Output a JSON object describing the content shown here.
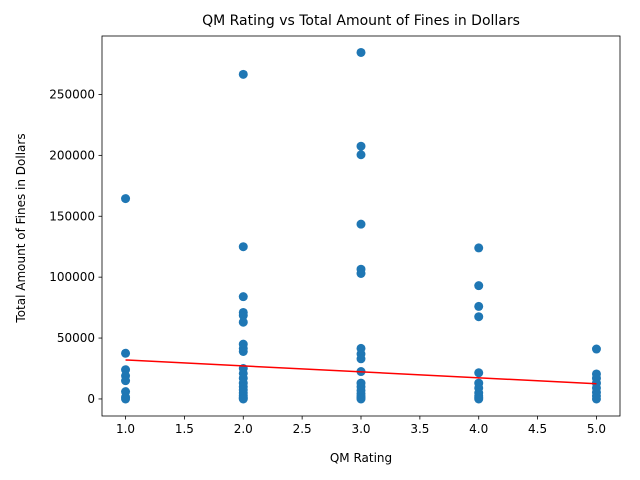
{
  "chart_data": {
    "type": "scatter",
    "title": "QM Rating vs Total Amount of Fines in Dollars",
    "xlabel": "QM Rating",
    "ylabel": "Total Amount of Fines in Dollars",
    "xlim": [
      0.8,
      5.2
    ],
    "ylim": [
      -14000,
      298000
    ],
    "x_ticks": [
      1.0,
      1.5,
      2.0,
      2.5,
      3.0,
      3.5,
      4.0,
      4.5,
      5.0
    ],
    "x_tick_labels": [
      "1.0",
      "1.5",
      "2.0",
      "2.5",
      "3.0",
      "3.5",
      "4.0",
      "4.5",
      "5.0"
    ],
    "y_ticks": [
      0,
      50000,
      100000,
      150000,
      200000,
      250000
    ],
    "y_tick_labels": [
      "0",
      "50000",
      "100000",
      "150000",
      "200000",
      "250000"
    ],
    "grid": false,
    "points": [
      {
        "x": 1,
        "y": 164500
      },
      {
        "x": 1,
        "y": 37500
      },
      {
        "x": 1,
        "y": 24000
      },
      {
        "x": 1,
        "y": 19000
      },
      {
        "x": 1,
        "y": 15000
      },
      {
        "x": 1,
        "y": 6000
      },
      {
        "x": 1,
        "y": 1500
      },
      {
        "x": 1,
        "y": 0
      },
      {
        "x": 2,
        "y": 266500
      },
      {
        "x": 2,
        "y": 125000
      },
      {
        "x": 2,
        "y": 84000
      },
      {
        "x": 2,
        "y": 71000
      },
      {
        "x": 2,
        "y": 68500
      },
      {
        "x": 2,
        "y": 63000
      },
      {
        "x": 2,
        "y": 45000
      },
      {
        "x": 2,
        "y": 41500
      },
      {
        "x": 2,
        "y": 39000
      },
      {
        "x": 2,
        "y": 25000
      },
      {
        "x": 2,
        "y": 21000
      },
      {
        "x": 2,
        "y": 17000
      },
      {
        "x": 2,
        "y": 13000
      },
      {
        "x": 2,
        "y": 10000
      },
      {
        "x": 2,
        "y": 7500
      },
      {
        "x": 2,
        "y": 5000
      },
      {
        "x": 2,
        "y": 3000
      },
      {
        "x": 2,
        "y": 1500
      },
      {
        "x": 2,
        "y": 500
      },
      {
        "x": 2,
        "y": 0
      },
      {
        "x": 3,
        "y": 284500
      },
      {
        "x": 3,
        "y": 207500
      },
      {
        "x": 3,
        "y": 200500
      },
      {
        "x": 3,
        "y": 143500
      },
      {
        "x": 3,
        "y": 106500
      },
      {
        "x": 3,
        "y": 103000
      },
      {
        "x": 3,
        "y": 41500
      },
      {
        "x": 3,
        "y": 37000
      },
      {
        "x": 3,
        "y": 33000
      },
      {
        "x": 3,
        "y": 22500
      },
      {
        "x": 3,
        "y": 13000
      },
      {
        "x": 3,
        "y": 10000
      },
      {
        "x": 3,
        "y": 7000
      },
      {
        "x": 3,
        "y": 4500
      },
      {
        "x": 3,
        "y": 2500
      },
      {
        "x": 3,
        "y": 1000
      },
      {
        "x": 3,
        "y": 0
      },
      {
        "x": 4,
        "y": 124000
      },
      {
        "x": 4,
        "y": 93000
      },
      {
        "x": 4,
        "y": 76000
      },
      {
        "x": 4,
        "y": 67500
      },
      {
        "x": 4,
        "y": 21500
      },
      {
        "x": 4,
        "y": 13000
      },
      {
        "x": 4,
        "y": 9000
      },
      {
        "x": 4,
        "y": 5000
      },
      {
        "x": 4,
        "y": 2500
      },
      {
        "x": 4,
        "y": 1000
      },
      {
        "x": 4,
        "y": 0
      },
      {
        "x": 5,
        "y": 41000
      },
      {
        "x": 5,
        "y": 20500
      },
      {
        "x": 5,
        "y": 17000
      },
      {
        "x": 5,
        "y": 13000
      },
      {
        "x": 5,
        "y": 9000
      },
      {
        "x": 5,
        "y": 5500
      },
      {
        "x": 5,
        "y": 2500
      },
      {
        "x": 5,
        "y": 0
      }
    ],
    "trendline": {
      "x": [
        1,
        5
      ],
      "y": [
        32000,
        12500
      ]
    },
    "colors": {
      "points": "#1f77b4",
      "trendline": "#ff0000"
    }
  }
}
